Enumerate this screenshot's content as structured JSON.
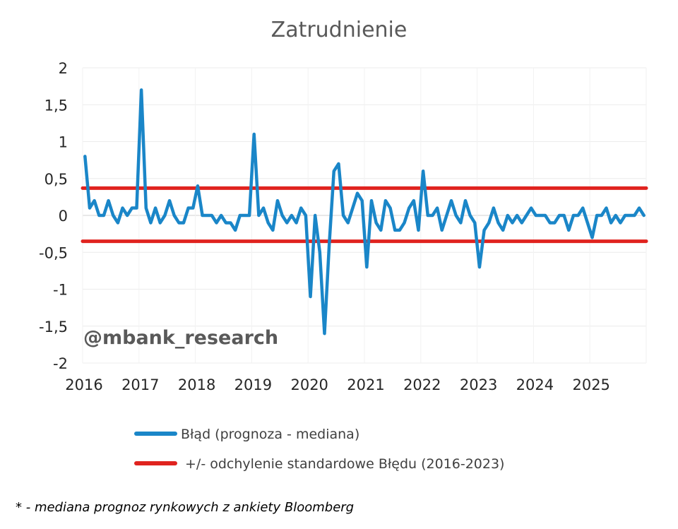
{
  "chart_data": {
    "type": "line",
    "title": "Zatrudnienie",
    "xlabel": "",
    "ylabel": "",
    "x_tick_labels": [
      "2016",
      "2017",
      "2018",
      "2019",
      "2020",
      "2021",
      "2022",
      "2023",
      "2024",
      "2025"
    ],
    "y_tick_labels": [
      "2",
      "1,5",
      "1",
      "0,5",
      "0",
      "-0,5",
      "-1",
      "-1,5",
      "-2"
    ],
    "ylim": [
      -2,
      2
    ],
    "y_ticks": [
      2,
      1.5,
      1,
      0.5,
      0,
      -0.5,
      -1,
      -1.5,
      -2
    ],
    "x_start": "2016-01",
    "x_end": "2025-12",
    "grid": true,
    "series": [
      {
        "name": "Błąd (prognoza - mediana)",
        "color": "#1a86c8",
        "style": "line",
        "values": [
          0.8,
          0.1,
          0.2,
          0.0,
          0.0,
          0.2,
          0.0,
          -0.1,
          0.1,
          0.0,
          0.1,
          0.1,
          1.7,
          0.1,
          -0.1,
          0.1,
          -0.1,
          0.0,
          0.2,
          0.0,
          -0.1,
          -0.1,
          0.1,
          0.1,
          0.4,
          0.0,
          0.0,
          0.0,
          -0.1,
          0.0,
          -0.1,
          -0.1,
          -0.2,
          0.0,
          0.0,
          0.0,
          1.1,
          0.0,
          0.1,
          -0.1,
          -0.2,
          0.2,
          0.0,
          -0.1,
          0.0,
          -0.1,
          0.1,
          0.0,
          -1.1,
          0.0,
          -0.5,
          -1.6,
          -0.4,
          0.6,
          0.7,
          0.0,
          -0.1,
          0.1,
          0.3,
          0.2,
          -0.7,
          0.2,
          -0.1,
          -0.2,
          0.2,
          0.1,
          -0.2,
          -0.2,
          -0.1,
          0.1,
          0.2,
          -0.2,
          0.6,
          0.0,
          0.0,
          0.1,
          -0.2,
          0.0,
          0.2,
          0.0,
          -0.1,
          0.2,
          0.0,
          -0.1,
          -0.7,
          -0.2,
          -0.1,
          0.1,
          -0.1,
          -0.2,
          0.0,
          -0.1,
          0.0,
          -0.1,
          0.0,
          0.1,
          0.0,
          0.0,
          0.0,
          -0.1,
          -0.1,
          0.0,
          0.0,
          -0.2,
          0.0,
          0.0,
          0.1,
          -0.1,
          -0.3,
          0.0,
          0.0,
          0.1,
          -0.1,
          0.0,
          -0.1,
          0.0,
          0.0,
          0.0,
          0.1,
          0.0
        ]
      },
      {
        "name": "+/- odchylenie standardowe Błędu (2016-2023)",
        "color": "#e0231f",
        "style": "band",
        "upper": 0.37,
        "lower": -0.35
      }
    ],
    "legend_position": "bottom",
    "watermark": "@mbank_research",
    "footnote": "* - mediana prognoz rynkowych z ankiety Bloomberg"
  }
}
